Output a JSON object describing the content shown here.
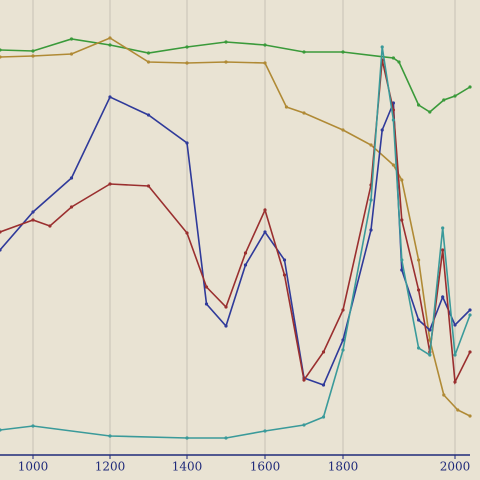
{
  "chart_data": {
    "type": "line",
    "xlim": [
      915,
      2027
    ],
    "ylim": [
      -25,
      455
    ],
    "xticks": [
      1000,
      1200,
      1400,
      1600,
      1800,
      2000
    ],
    "grid": true,
    "series": [
      {
        "color": "#3a9a3a",
        "x": [
          915,
          1000,
          1100,
          1200,
          1300,
          1400,
          1500,
          1600,
          1700,
          1800,
          1890,
          1900,
          1935,
          1955,
          1980,
          2000,
          2027
        ],
        "values": [
          405,
          404,
          416,
          410,
          402,
          408,
          413,
          410,
          403,
          403,
          397,
          393,
          350,
          343,
          355,
          359,
          368
        ]
      },
      {
        "color": "#b08a35",
        "x": [
          915,
          1000,
          1100,
          1200,
          1300,
          1400,
          1500,
          1600,
          1655,
          1700,
          1800,
          1850,
          1890,
          1905,
          1935,
          1955,
          1980,
          2005,
          2027
        ],
        "values": [
          398,
          399,
          401,
          417,
          393,
          392,
          393,
          392,
          348,
          342,
          325,
          310,
          290,
          275,
          195,
          115,
          60,
          45,
          39
        ]
      },
      {
        "color": "#2f3a9a",
        "x": [
          915,
          1000,
          1100,
          1200,
          1300,
          1400,
          1450,
          1500,
          1550,
          1600,
          1650,
          1700,
          1750,
          1800,
          1850,
          1870,
          1890,
          1905,
          1935,
          1955,
          1978,
          2000,
          2027
        ],
        "values": [
          205,
          243,
          277,
          358,
          340,
          312,
          151,
          129,
          190,
          223,
          195,
          77,
          70,
          115,
          225,
          325,
          352,
          185,
          135,
          125,
          158,
          130,
          145
        ]
      },
      {
        "color": "#9a2f2f",
        "x": [
          915,
          1000,
          1044,
          1100,
          1200,
          1300,
          1400,
          1450,
          1500,
          1550,
          1600,
          1650,
          1700,
          1750,
          1800,
          1850,
          1870,
          1890,
          1905,
          1935,
          1955,
          1978,
          2000,
          2027
        ],
        "values": [
          223,
          235,
          229,
          248,
          271,
          269,
          222,
          168,
          148,
          202,
          245,
          180,
          75,
          103,
          145,
          270,
          395,
          345,
          235,
          165,
          103,
          205,
          73,
          103
        ]
      },
      {
        "color": "#3a9a9a",
        "x": [
          915,
          1000,
          1200,
          1400,
          1500,
          1600,
          1700,
          1750,
          1800,
          1850,
          1870,
          1890,
          1905,
          1935,
          1955,
          1978,
          2000,
          2027
        ],
        "values": [
          25,
          29,
          19,
          17,
          17,
          24,
          30,
          38,
          105,
          255,
          408,
          335,
          195,
          107,
          100,
          227,
          100,
          140
        ]
      }
    ]
  }
}
